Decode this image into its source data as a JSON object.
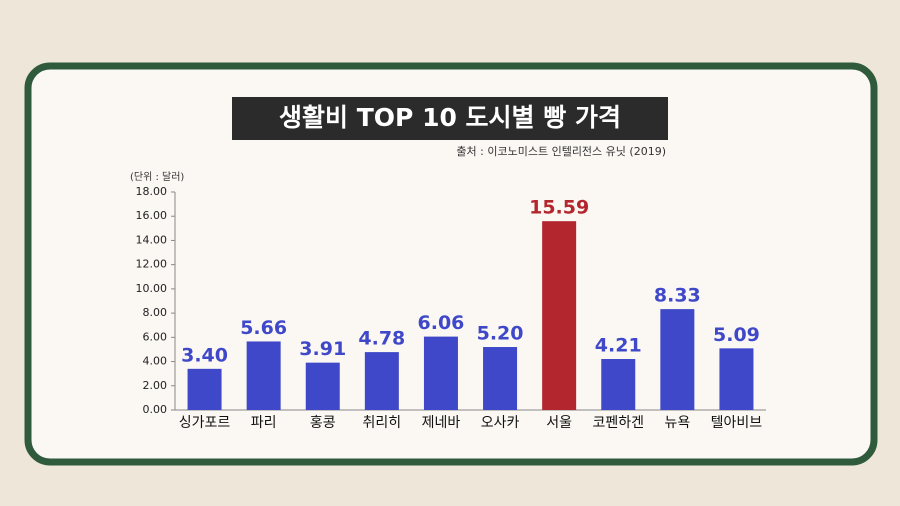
{
  "chart_data": {
    "type": "bar",
    "title": "생활비 TOP 10 도시별 빵 가격",
    "subtitle": "출처 : 이코노미스트 인텔리전스 유닛 (2019)",
    "unit": "(단위 : 달러)",
    "categories": [
      "싱가포르",
      "파리",
      "홍콩",
      "취리히",
      "제네바",
      "오사카",
      "서울",
      "코펜하겐",
      "뉴욕",
      "텔아비브"
    ],
    "values": [
      3.4,
      5.66,
      3.91,
      4.78,
      6.06,
      5.2,
      15.59,
      4.21,
      8.33,
      5.09
    ],
    "value_labels": [
      "3.40",
      "5.66",
      "3.91",
      "4.78",
      "6.06",
      "5.20",
      "15.59",
      "4.21",
      "8.33",
      "5.09"
    ],
    "colors": [
      "#3f48c8",
      "#3f48c8",
      "#3f48c8",
      "#3f48c8",
      "#3f48c8",
      "#3f48c8",
      "#b3262d",
      "#3f48c8",
      "#3f48c8",
      "#3f48c8"
    ],
    "ylim": [
      0,
      18
    ],
    "yticks": [
      {
        "value": 0,
        "label": "0.00"
      },
      {
        "value": 2,
        "label": "2.00"
      },
      {
        "value": 4,
        "label": "4.00"
      },
      {
        "value": 6,
        "label": "6.00"
      },
      {
        "value": 8,
        "label": "8.00"
      },
      {
        "value": 10,
        "label": "10.00"
      },
      {
        "value": 12,
        "label": "12.00"
      },
      {
        "value": 14,
        "label": "14.00"
      },
      {
        "value": 16,
        "label": "16.00"
      },
      {
        "value": 18,
        "label": "18.00"
      }
    ],
    "grid": false
  }
}
